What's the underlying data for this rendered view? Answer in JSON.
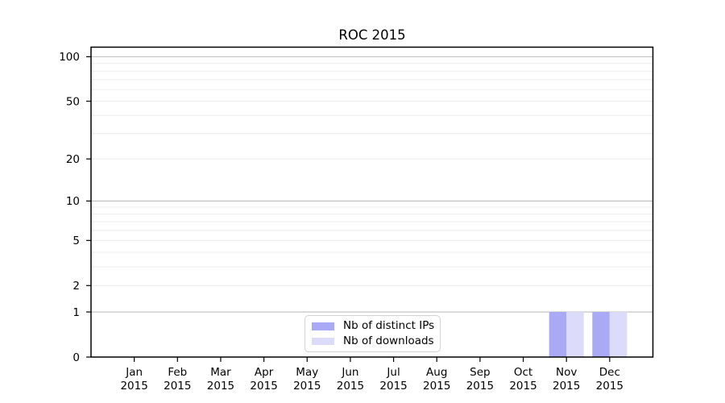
{
  "figure": {
    "background": "#ffffff"
  },
  "chart_data": {
    "type": "bar",
    "title": "ROC 2015",
    "categories": [
      "Jan",
      "Feb",
      "Mar",
      "Apr",
      "May",
      "Jun",
      "Jul",
      "Aug",
      "Sep",
      "Oct",
      "Nov",
      "Dec"
    ],
    "x_year_label": "2015",
    "series": [
      {
        "name": "Nb of distinct IPs",
        "color": "#a9a9f6",
        "values": [
          0,
          0,
          0,
          0,
          0,
          0,
          0,
          0,
          0,
          0,
          1,
          1
        ]
      },
      {
        "name": "Nb of downloads",
        "color": "#dcdcfa",
        "values": [
          0,
          0,
          0,
          0,
          0,
          0,
          0,
          0,
          0,
          0,
          1,
          1
        ]
      }
    ],
    "yscale": "log1p",
    "ylim": [
      0,
      116
    ],
    "y_ticks": [
      0,
      1,
      2,
      5,
      10,
      20,
      50,
      100
    ],
    "y_major_gridlines": [
      1,
      10,
      100
    ],
    "y_minor_gridlines": [
      2,
      3,
      4,
      5,
      6,
      7,
      8,
      9,
      20,
      30,
      40,
      50,
      60,
      70,
      80,
      90
    ],
    "grid_major_color": "#bdbdbd",
    "grid_minor_color": "#ebebeb",
    "axis_color": "#000000",
    "tick_label_color": "#000000",
    "legend_position": "lower center"
  }
}
